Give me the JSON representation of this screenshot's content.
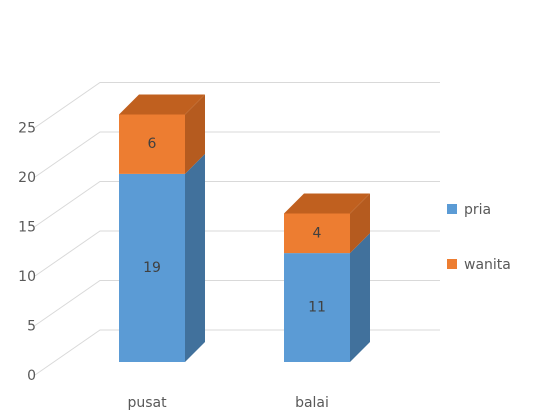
{
  "chart_data": {
    "type": "bar",
    "stacked": true,
    "style": "3d-column",
    "categories": [
      "pusat",
      "balai"
    ],
    "series": [
      {
        "name": "pria",
        "values": [
          19,
          11
        ],
        "color": "#5B9BD5",
        "side_color": "#41719C",
        "top_color": "#7EB2E2"
      },
      {
        "name": "wanita",
        "values": [
          6,
          4
        ],
        "color": "#ED7D31",
        "side_color": "#B55B1F",
        "top_color": "#C0601F"
      }
    ],
    "ylim": [
      0,
      25
    ],
    "yticks": [
      0,
      5,
      10,
      15,
      20,
      25
    ],
    "grid": true,
    "legend_position": "right",
    "data_labels": true
  }
}
